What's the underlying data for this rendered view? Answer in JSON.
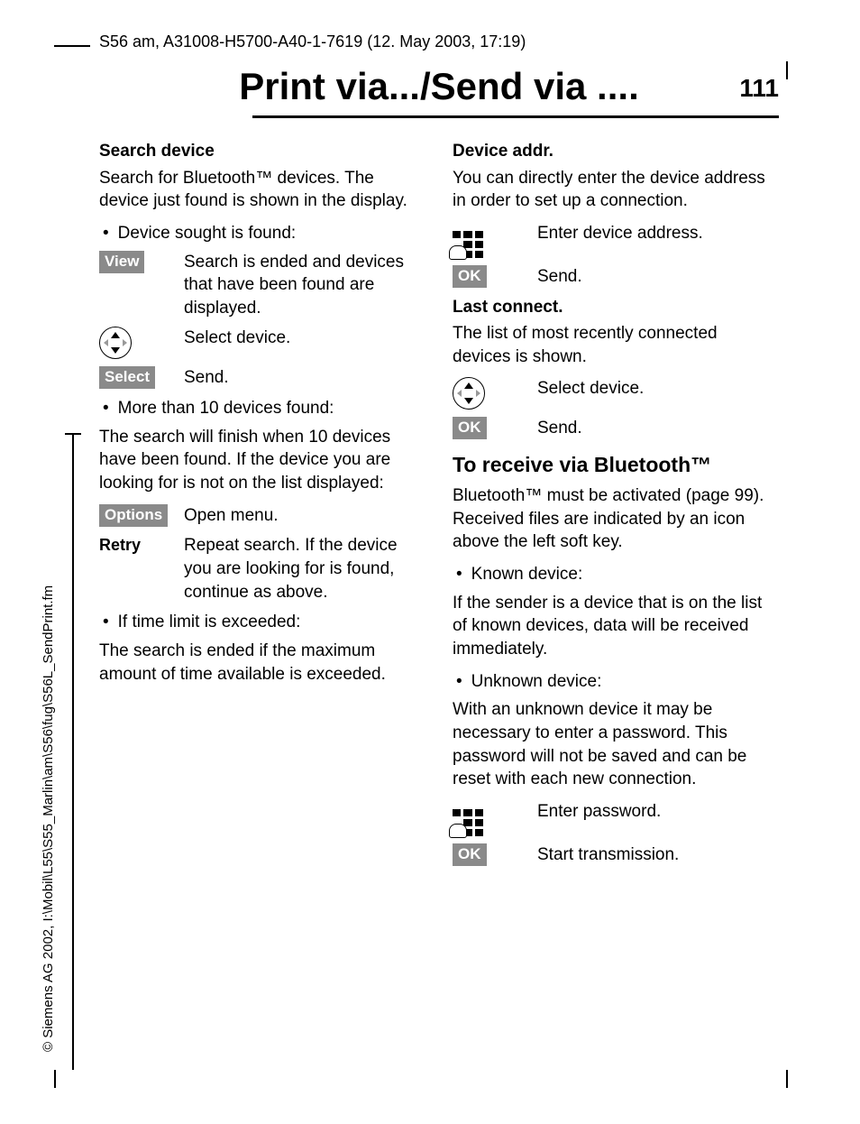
{
  "header": "S56 am, A31008-H5700-A40-1-7619 (12. May 2003, 17:19)",
  "title": "Print via.../Send via ....",
  "page_number": "111",
  "side_text": "© Siemens AG 2002, I:\\Mobil\\L55\\S55_Marlin\\am\\S56\\fug\\S56L_SendPrint.fm",
  "left": {
    "h1": "Search device",
    "p1": "Search for Bluetooth™ devices. The device just found is shown in the display.",
    "b1": "Device sought is found:",
    "view_key": "View",
    "view_text": "Search is ended and devices that have been found are displayed.",
    "nav1_text": "Select device.",
    "select_key": "Select",
    "select_text": "Send.",
    "b2": "More than 10 devices found:",
    "p2": "The search will finish when 10 devices have been found. If the device you are looking for is not on the list displayed:",
    "options_key": "Options",
    "options_text": "Open menu.",
    "retry_key": "Retry",
    "retry_text": "Repeat search. If the device you are looking for is found, continue as above.",
    "b3": "If time limit is exceeded:",
    "p3": "The search is ended if the maximum amount of time available is exceeded."
  },
  "right": {
    "h1": "Device addr.",
    "p1": "You can directly enter the device address in order to set up a connection.",
    "kp1_text": "Enter device address.",
    "ok1_key": "OK",
    "ok1_text": "Send.",
    "h2": "Last connect.",
    "p2": "The list of most recently connected devices is shown.",
    "nav1_text": "Select device.",
    "ok2_key": "OK",
    "ok2_text": "Send.",
    "h3": "To receive via Bluetooth™",
    "p3": "Bluetooth™ must be activated (page 99). Received files are indicated by an icon above the left soft key.",
    "b1": "Known device:",
    "p4": "If the sender is a device that is on the list of known devices, data will be received immediately.",
    "b2": "Unknown device:",
    "p5": "With an unknown device it may be necessary to enter a password. This password will not be saved and can be reset with each new connection.",
    "kp2_text": "Enter password.",
    "ok3_key": "OK",
    "ok3_text": "Start transmission."
  }
}
